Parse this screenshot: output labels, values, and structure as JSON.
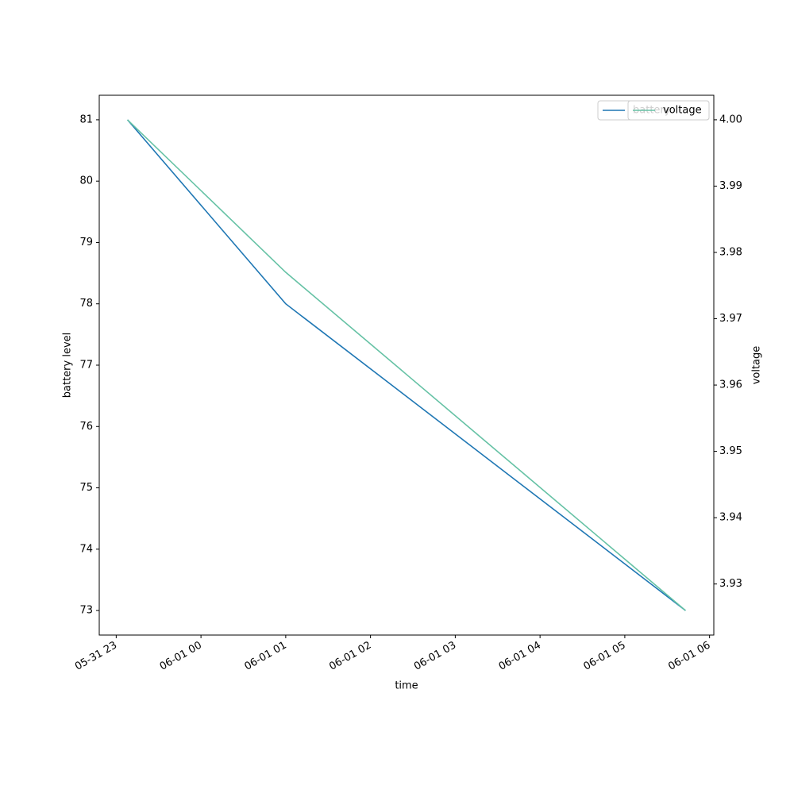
{
  "chart_data": {
    "type": "line",
    "x": [
      "05-31 23:08",
      "06-01 01:00",
      "06-01 05:43"
    ],
    "xlabel": "time",
    "ylabel": "battery level",
    "y2label": "voltage",
    "xlim": [
      "05-31 22:48",
      "06-01 06:03"
    ],
    "xticks": [
      "05-31 23",
      "06-01 00",
      "06-01 01",
      "06-01 02",
      "06-01 03",
      "06-01 04",
      "06-01 05",
      "06-01 06"
    ],
    "ylim": [
      72.6,
      81.4
    ],
    "yticks": [
      73,
      74,
      75,
      76,
      77,
      78,
      79,
      80,
      81
    ],
    "y2lim": [
      3.9223,
      4.0037
    ],
    "y2ticks": [
      3.93,
      3.94,
      3.95,
      3.96,
      3.97,
      3.98,
      3.99,
      {
        "value": 4.0,
        "label": "4.00"
      }
    ],
    "legend": "upper right",
    "series": [
      {
        "name": "battery",
        "color": "#1f77b4",
        "values": [
          81,
          78,
          73
        ]
      },
      {
        "name": "voltage",
        "color": "#66c2a5",
        "axis": "y2",
        "values": [
          4.0,
          3.977,
          3.926
        ]
      }
    ]
  }
}
